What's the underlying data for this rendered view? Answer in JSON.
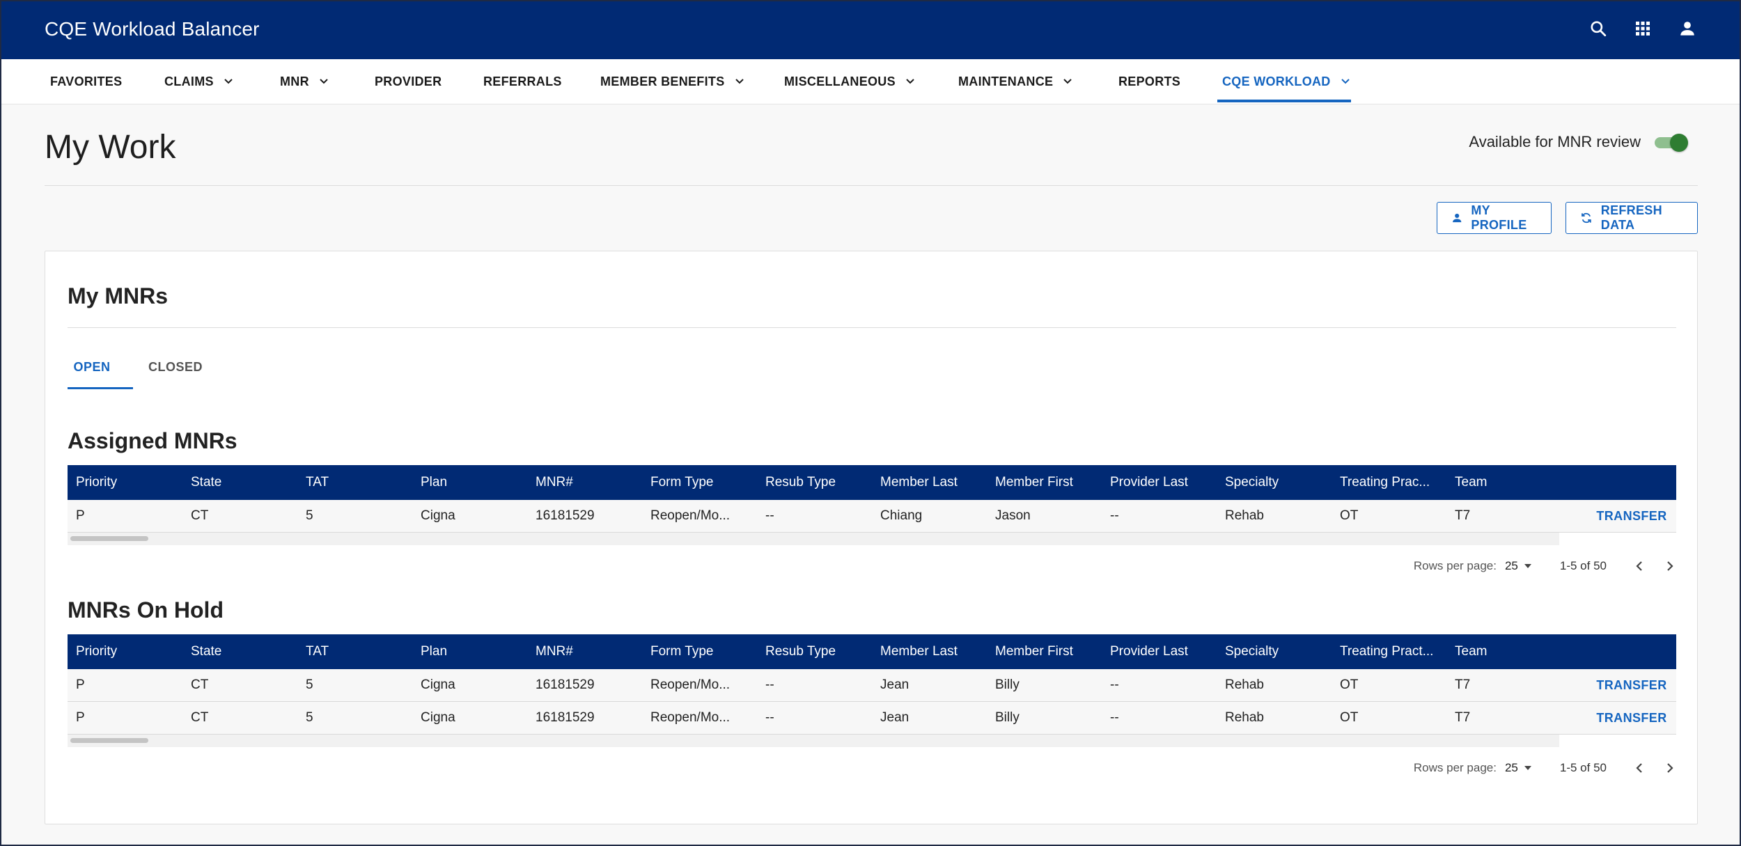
{
  "app": {
    "title": "CQE Workload Balancer"
  },
  "header_icons": [
    "search-icon",
    "apps-grid-icon",
    "account-icon"
  ],
  "nav": {
    "items": [
      {
        "label": "FAVORITES",
        "dropdown": false
      },
      {
        "label": "CLAIMS",
        "dropdown": true
      },
      {
        "label": "MNR",
        "dropdown": true
      },
      {
        "label": "PROVIDER",
        "dropdown": false
      },
      {
        "label": "REFERRALS",
        "dropdown": false
      },
      {
        "label": "MEMBER BENEFITS",
        "dropdown": true
      },
      {
        "label": "MISCELLANEOUS",
        "dropdown": true
      },
      {
        "label": "MAINTENANCE",
        "dropdown": true
      },
      {
        "label": "REPORTS",
        "dropdown": false
      },
      {
        "label": "CQE WORKLOAD",
        "dropdown": true,
        "active": true
      }
    ]
  },
  "page": {
    "title": "My Work",
    "availability_label": "Available for MNR review",
    "availability_on": true,
    "my_profile_label": "MY PROFILE",
    "refresh_label": "REFRESH DATA"
  },
  "card": {
    "title": "My MNRs",
    "tabs": [
      {
        "label": "OPEN",
        "active": true
      },
      {
        "label": "CLOSED",
        "active": false
      }
    ]
  },
  "assigned": {
    "title": "Assigned MNRs",
    "columns": [
      "Priority",
      "State",
      "TAT",
      "Plan",
      "MNR#",
      "Form Type",
      "Resub Type",
      "Member Last",
      "Member First",
      "Provider Last",
      "Specialty",
      "Treating Prac...",
      "Team"
    ],
    "rows": [
      [
        "P",
        "CT",
        "5",
        "Cigna",
        "16181529",
        "Reopen/Mo...",
        "--",
        "Chiang",
        "Jason",
        "--",
        "Rehab",
        "OT",
        "T7"
      ]
    ],
    "action_label": "TRANSFER",
    "pager": {
      "rows_per_page_label": "Rows per page:",
      "rows_per_page": "25",
      "range": "1-5 of 50"
    }
  },
  "on_hold": {
    "title": "MNRs On Hold",
    "columns": [
      "Priority",
      "State",
      "TAT",
      "Plan",
      "MNR#",
      "Form Type",
      "Resub Type",
      "Member Last",
      "Member First",
      "Provider Last",
      "Specialty",
      "Treating Pract...",
      "Team"
    ],
    "rows": [
      [
        "P",
        "CT",
        "5",
        "Cigna",
        "16181529",
        "Reopen/Mo...",
        "--",
        "Jean",
        "Billy",
        "--",
        "Rehab",
        "OT",
        "T7"
      ],
      [
        "P",
        "CT",
        "5",
        "Cigna",
        "16181529",
        "Reopen/Mo...",
        "--",
        "Jean",
        "Billy",
        "--",
        "Rehab",
        "OT",
        "T7"
      ]
    ],
    "action_label": "TRANSFER",
    "pager": {
      "rows_per_page_label": "Rows per page:",
      "rows_per_page": "25",
      "range": "1-5 of 50"
    }
  },
  "colors": {
    "header_bg": "#012a74",
    "accent": "#1565c0",
    "toggle_on": "#2e7d32"
  }
}
